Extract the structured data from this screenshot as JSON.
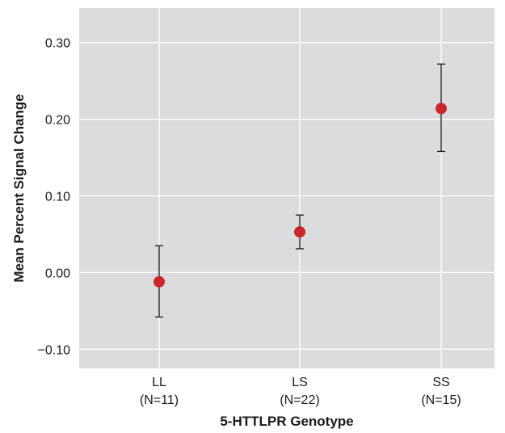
{
  "chart_data": {
    "type": "scatter",
    "title": "",
    "xlabel": "5-HTTLPR Genotype",
    "ylabel": "Mean Percent Signal Change",
    "categories": [
      {
        "label": "LL",
        "sublabel": "(N=11)"
      },
      {
        "label": "LS",
        "sublabel": "(N=22)"
      },
      {
        "label": "SS",
        "sublabel": "(N=15)"
      }
    ],
    "values": [
      -0.012,
      0.053,
      0.214
    ],
    "error_upper": [
      0.035,
      0.075,
      0.272
    ],
    "error_lower": [
      -0.058,
      0.031,
      0.158
    ],
    "ylim": [
      -0.125,
      0.345
    ],
    "yticks": [
      -0.1,
      0.0,
      0.1,
      0.2,
      0.3
    ],
    "ytick_labels": [
      "−0.10",
      "0.00",
      "0.10",
      "0.20",
      "0.30"
    ],
    "grid": true,
    "colors": {
      "panel": "#dcdcde",
      "grid": "#ffffff",
      "point": "#c8282a",
      "errorbar": "#1a1a1a"
    }
  }
}
